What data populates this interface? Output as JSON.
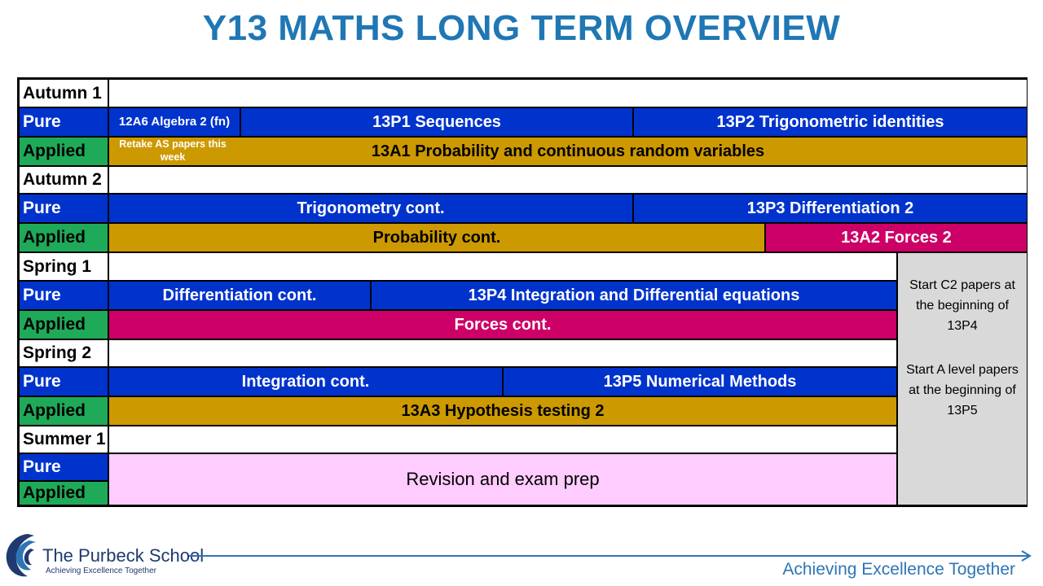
{
  "title": "Y13 MATHS LONG TERM OVERVIEW",
  "labels": {
    "autumn1": "Autumn 1",
    "autumn2": "Autumn 2",
    "spring1": "Spring 1",
    "spring2": "Spring 2",
    "summer1": "Summer 1",
    "pure": "Pure",
    "applied": "Applied"
  },
  "autumn1": {
    "pure": [
      "12A6 Algebra 2 (fn)",
      "13P1 Sequences",
      "13P2 Trigonometric identities"
    ],
    "applied_note": "Retake AS papers this week",
    "applied": "13A1 Probability and continuous random variables"
  },
  "autumn2": {
    "pure": [
      "Trigonometry cont.",
      "13P3 Differentiation 2"
    ],
    "applied": [
      "Probability cont.",
      "13A2 Forces 2"
    ]
  },
  "spring1": {
    "pure": [
      "Differentiation cont.",
      "13P4 Integration and Differential equations"
    ],
    "applied": "Forces cont."
  },
  "spring2": {
    "pure": [
      "Integration cont.",
      "13P5 Numerical Methods"
    ],
    "applied": "13A3 Hypothesis testing 2"
  },
  "summer1": {
    "revision": "Revision and exam prep"
  },
  "side_note": {
    "line1": "Start C2 papers at the beginning of 13P4",
    "line2": "Start A level papers at the beginning of 13P5"
  },
  "footer": {
    "school": "The Purbeck School",
    "tagline": "Achieving Excellence Together",
    "motto": "Achieving Excellence Together"
  },
  "colors": {
    "title": "#1F77B4",
    "pure": "#0033CC",
    "applied_label": "#1FAA59",
    "applied_block": "#CC9900",
    "forces": "#CC0066",
    "revision": "#FFCCFF",
    "note": "#D9D9D9"
  }
}
